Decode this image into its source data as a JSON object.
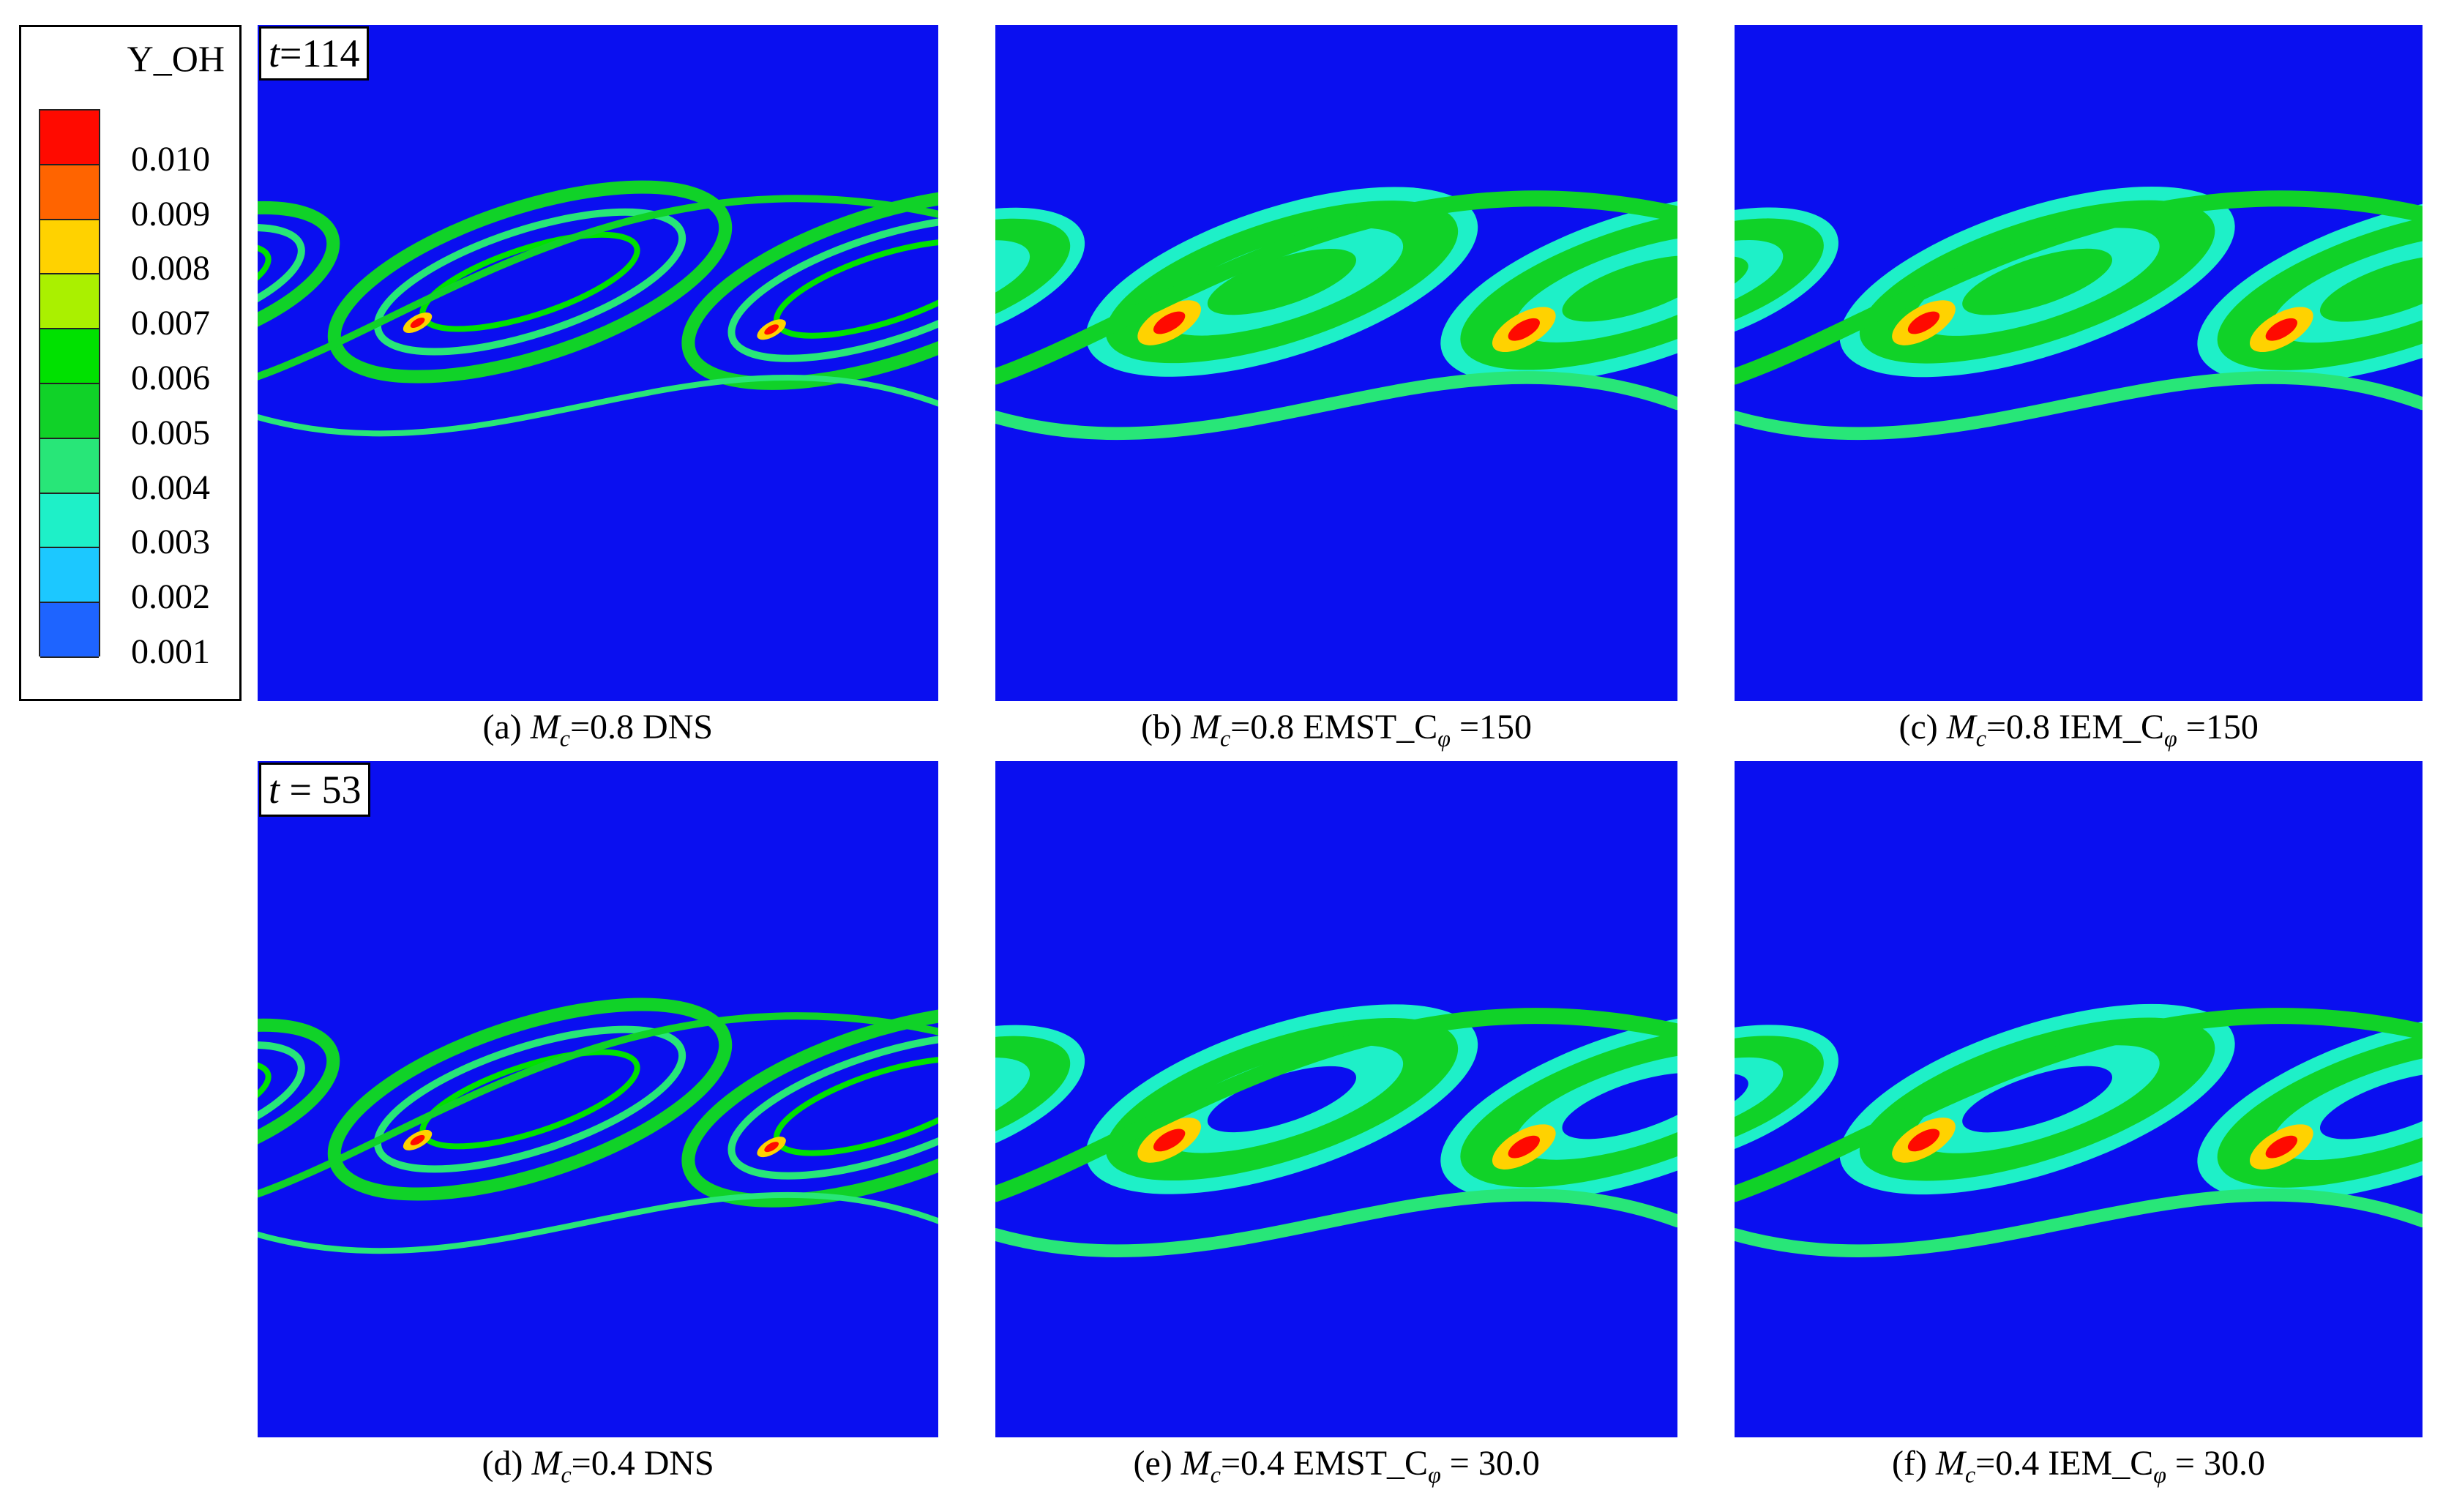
{
  "colors": {
    "background": "#0a0ff0",
    "levels": [
      "#0a0ff0",
      "#1e64ff",
      "#1cc8ff",
      "#1ef0c8",
      "#28e678",
      "#10d228",
      "#00e100",
      "#aaf000",
      "#ffd200",
      "#ff6400",
      "#ff0a00"
    ]
  },
  "legend": {
    "title": "Y_OH",
    "labels": [
      "0.010",
      "0.009",
      "0.008",
      "0.007",
      "0.006",
      "0.005",
      "0.004",
      "0.003",
      "0.002",
      "0.001"
    ]
  },
  "panels": [
    {
      "id": "a",
      "time_t": "t",
      "time_eq": "=",
      "time_value": "114",
      "caption_prefix": "(a) ",
      "caption_M": "M",
      "caption_sub": "c",
      "caption_rest": "=0.8 DNS",
      "caption_sub2": "",
      "caption_tail": ""
    },
    {
      "id": "b",
      "time_t": "",
      "time_eq": "",
      "time_value": "",
      "caption_prefix": "(b) ",
      "caption_M": "M",
      "caption_sub": "c",
      "caption_rest": "=0.8 EMST_C",
      "caption_sub2": "φ",
      "caption_tail": " =150"
    },
    {
      "id": "c",
      "time_t": "",
      "time_eq": "",
      "time_value": "",
      "caption_prefix": "(c) ",
      "caption_M": "M",
      "caption_sub": "c",
      "caption_rest": "=0.8 IEM_C",
      "caption_sub2": "φ",
      "caption_tail": " =150"
    },
    {
      "id": "d",
      "time_t": "t",
      "time_eq": " = ",
      "time_value": "53",
      "caption_prefix": "(d) ",
      "caption_M": "M",
      "caption_sub": "c",
      "caption_rest": "=0.4 DNS",
      "caption_sub2": "",
      "caption_tail": ""
    },
    {
      "id": "e",
      "time_t": "",
      "time_eq": "",
      "time_value": "",
      "caption_prefix": "(e) ",
      "caption_M": "M",
      "caption_sub": "c",
      "caption_rest": "=0.4 EMST_C",
      "caption_sub2": "φ",
      "caption_tail": " = 30.0"
    },
    {
      "id": "f",
      "time_t": "",
      "time_eq": "",
      "time_value": "",
      "caption_prefix": "(f) ",
      "caption_M": "M",
      "caption_sub": "c",
      "caption_rest": "=0.4 IEM_C",
      "caption_sub2": "φ",
      "caption_tail": " = 30.0"
    }
  ]
}
